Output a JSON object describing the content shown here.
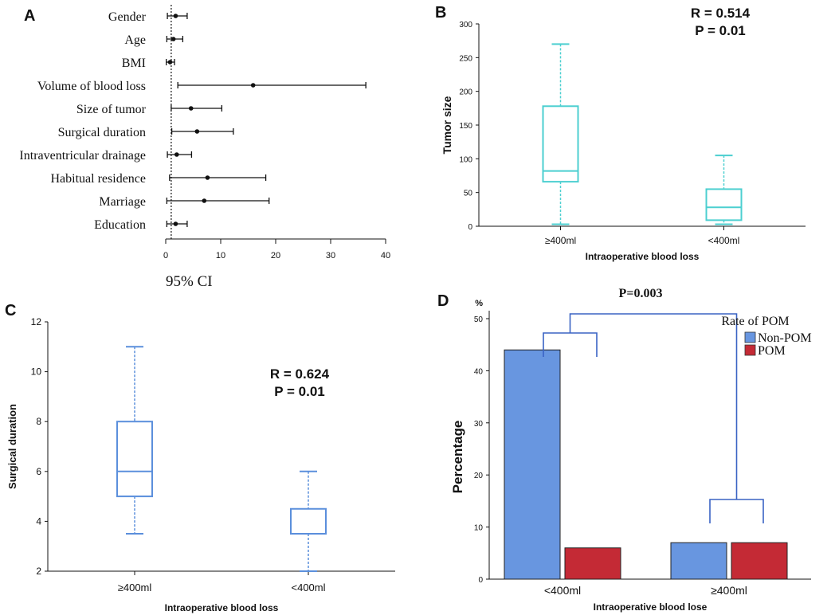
{
  "chart_data": [
    {
      "panel": "A",
      "type": "forest",
      "xlabel": "95% CI",
      "xlim": [
        0,
        40
      ],
      "xticks": [
        "0",
        "10",
        "20",
        "30",
        "40"
      ],
      "reference_line": 1,
      "rows": [
        {
          "label": "Gender",
          "estimate": 1.8,
          "lower": 0.3,
          "upper": 3.9
        },
        {
          "label": "Age",
          "estimate": 1.4,
          "lower": 0.2,
          "upper": 3.1
        },
        {
          "label": "BMI",
          "estimate": 0.8,
          "lower": 0.1,
          "upper": 1.6
        },
        {
          "label": "Volume of blood loss",
          "estimate": 15.9,
          "lower": 2.2,
          "upper": 36.4
        },
        {
          "label": "Size of tumor",
          "estimate": 4.6,
          "lower": 1.0,
          "upper": 10.2
        },
        {
          "label": "Surgical duration",
          "estimate": 5.7,
          "lower": 1.1,
          "upper": 12.3
        },
        {
          "label": "Intraventricular drainage",
          "estimate": 2.0,
          "lower": 0.3,
          "upper": 4.7
        },
        {
          "label": "Habitual residence",
          "estimate": 7.6,
          "lower": 0.7,
          "upper": 18.2
        },
        {
          "label": "Marriage",
          "estimate": 7.0,
          "lower": 0.2,
          "upper": 18.8
        },
        {
          "label": "Education",
          "estimate": 1.8,
          "lower": 0.2,
          "upper": 3.9
        }
      ]
    },
    {
      "panel": "B",
      "type": "box",
      "color": "#4ccfd0",
      "ylabel": "Tumor size",
      "xlabel": "Intraoperative blood loss",
      "ylim": [
        0,
        300
      ],
      "yticks": [
        "0",
        "50",
        "100",
        "150",
        "200",
        "250",
        "300"
      ],
      "annotation": [
        "R = 0.514",
        "P = 0.01"
      ],
      "groups": [
        {
          "label": "≥400ml",
          "min": 3,
          "q1": 66,
          "median": 82,
          "q3": 178,
          "max": 270
        },
        {
          "label": "<400ml",
          "min": 3,
          "q1": 9,
          "median": 28,
          "q3": 55,
          "max": 105
        }
      ]
    },
    {
      "panel": "C",
      "type": "box",
      "color": "#5b8fdc",
      "ylabel": "Surgical duration",
      "xlabel": "Intraoperative blood loss",
      "ylim": [
        2,
        12
      ],
      "yticks": [
        "2",
        "4",
        "6",
        "8",
        "10",
        "12"
      ],
      "annotation": [
        "R = 0.624",
        "P = 0.01"
      ],
      "groups": [
        {
          "label": "≥400ml",
          "min": 3.5,
          "q1": 5,
          "median": 6,
          "q3": 8,
          "max": 11
        },
        {
          "label": "<400ml",
          "min": 2,
          "q1": 3.5,
          "median": 3.5,
          "q3": 4.5,
          "max": 6
        }
      ]
    },
    {
      "panel": "D",
      "type": "bar",
      "ylabel": "Percentage",
      "yunit": "%",
      "xlabel": "Intraoperative blood lose",
      "ylim": [
        0,
        50
      ],
      "yticks": [
        "0",
        "10",
        "20",
        "30",
        "40",
        "50"
      ],
      "categories": [
        "<400ml",
        "≥400ml"
      ],
      "significance": "P=0.003",
      "legend_title": "Rate of POM",
      "series": [
        {
          "name": "Non-POM",
          "color": "#6896e0",
          "values": [
            44,
            7
          ]
        },
        {
          "name": "POM",
          "color": "#c42a35",
          "values": [
            6,
            7
          ]
        }
      ]
    }
  ],
  "panel_letters": [
    "A",
    "B",
    "C",
    "D"
  ]
}
